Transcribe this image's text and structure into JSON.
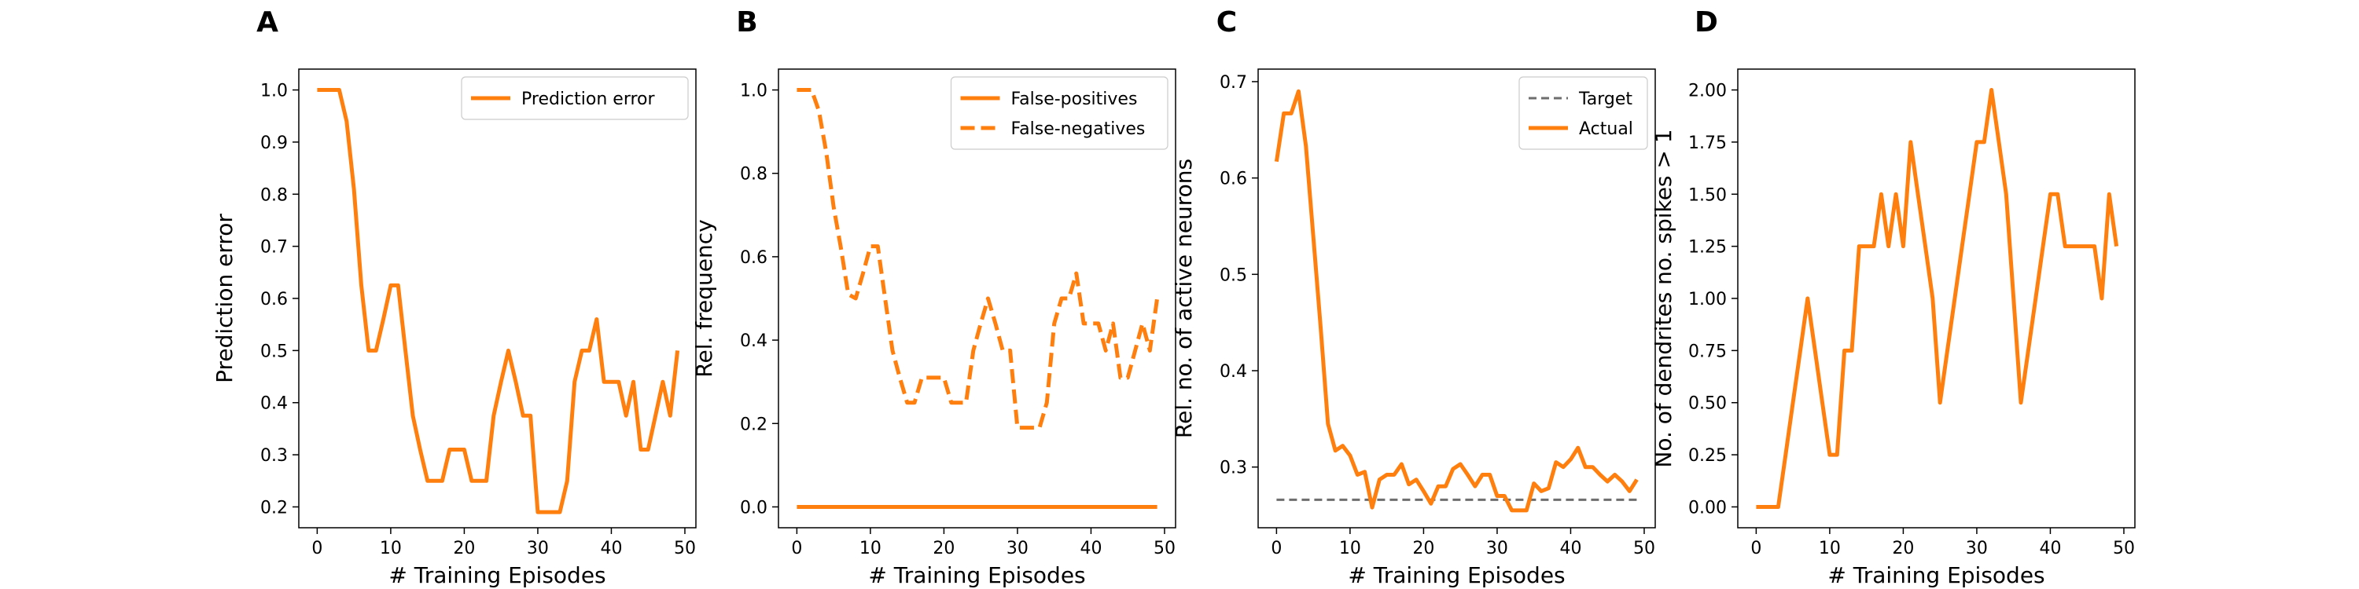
{
  "colors": {
    "orange": "#ff7f0e",
    "gray": "#6e6e6e",
    "frame": "#000000"
  },
  "chart_data": [
    {
      "panel_label": "A",
      "type": "line",
      "xlabel": "# Training Episodes",
      "ylabel": "Prediction error",
      "xlim": [
        -2.5,
        51.5
      ],
      "ylim": [
        0.16,
        1.04
      ],
      "xticks": [
        0,
        10,
        20,
        30,
        40,
        50
      ],
      "yticks": [
        0.2,
        0.3,
        0.4,
        0.5,
        0.6,
        0.7,
        0.8,
        0.9,
        1.0
      ],
      "ytick_labels": [
        "0.2",
        "0.3",
        "0.4",
        "0.5",
        "0.6",
        "0.7",
        "0.8",
        "0.9",
        "1.0"
      ],
      "grid": false,
      "legend_position": "top-right",
      "series": [
        {
          "name": "Prediction error",
          "style": "solid",
          "color": "#ff7f0e",
          "x": [
            0,
            1,
            2,
            3,
            4,
            5,
            6,
            7,
            8,
            9,
            10,
            11,
            12,
            13,
            14,
            15,
            16,
            17,
            18,
            19,
            20,
            21,
            22,
            23,
            24,
            25,
            26,
            27,
            28,
            29,
            30,
            31,
            32,
            33,
            34,
            35,
            36,
            37,
            38,
            39,
            40,
            41,
            42,
            43,
            44,
            45,
            46,
            47,
            48,
            49
          ],
          "values": [
            1.0,
            1.0,
            1.0,
            1.0,
            0.94,
            0.81,
            0.625,
            0.5,
            0.5,
            0.56,
            0.625,
            0.625,
            0.5,
            0.375,
            0.31,
            0.25,
            0.25,
            0.25,
            0.31,
            0.31,
            0.31,
            0.25,
            0.25,
            0.25,
            0.375,
            0.44,
            0.5,
            0.44,
            0.375,
            0.375,
            0.19,
            0.19,
            0.19,
            0.19,
            0.25,
            0.44,
            0.5,
            0.5,
            0.56,
            0.44,
            0.44,
            0.44,
            0.375,
            0.44,
            0.31,
            0.31,
            0.375,
            0.44,
            0.375,
            0.5
          ]
        }
      ]
    },
    {
      "panel_label": "B",
      "type": "line",
      "xlabel": "# Training Episodes",
      "ylabel": "Rel. frequency",
      "xlim": [
        -2.5,
        51.5
      ],
      "ylim": [
        -0.05,
        1.05
      ],
      "xticks": [
        0,
        10,
        20,
        30,
        40,
        50
      ],
      "yticks": [
        0.0,
        0.2,
        0.4,
        0.6,
        0.8,
        1.0
      ],
      "ytick_labels": [
        "0.0",
        "0.2",
        "0.4",
        "0.6",
        "0.8",
        "1.0"
      ],
      "grid": false,
      "legend_position": "top-right",
      "series": [
        {
          "name": "False-positives",
          "style": "solid",
          "color": "#ff7f0e",
          "x": [
            0,
            1,
            2,
            3,
            4,
            5,
            6,
            7,
            8,
            9,
            10,
            11,
            12,
            13,
            14,
            15,
            16,
            17,
            18,
            19,
            20,
            21,
            22,
            23,
            24,
            25,
            26,
            27,
            28,
            29,
            30,
            31,
            32,
            33,
            34,
            35,
            36,
            37,
            38,
            39,
            40,
            41,
            42,
            43,
            44,
            45,
            46,
            47,
            48,
            49
          ],
          "values": [
            0,
            0,
            0,
            0,
            0,
            0,
            0,
            0,
            0,
            0,
            0,
            0,
            0,
            0,
            0,
            0,
            0,
            0,
            0,
            0,
            0,
            0,
            0,
            0,
            0,
            0,
            0,
            0,
            0,
            0,
            0,
            0,
            0,
            0,
            0,
            0,
            0,
            0,
            0,
            0,
            0,
            0,
            0,
            0,
            0,
            0,
            0,
            0,
            0,
            0
          ]
        },
        {
          "name": "False-negatives",
          "style": "dashed",
          "color": "#ff7f0e",
          "x": [
            0,
            1,
            2,
            3,
            4,
            5,
            6,
            7,
            8,
            9,
            10,
            11,
            12,
            13,
            14,
            15,
            16,
            17,
            18,
            19,
            20,
            21,
            22,
            23,
            24,
            25,
            26,
            27,
            28,
            29,
            30,
            31,
            32,
            33,
            34,
            35,
            36,
            37,
            38,
            39,
            40,
            41,
            42,
            43,
            44,
            45,
            46,
            47,
            48,
            49
          ],
          "values": [
            1.0,
            1.0,
            1.0,
            0.95,
            0.85,
            0.72,
            0.62,
            0.51,
            0.5,
            0.56,
            0.625,
            0.625,
            0.5,
            0.375,
            0.31,
            0.25,
            0.25,
            0.31,
            0.31,
            0.31,
            0.31,
            0.25,
            0.25,
            0.25,
            0.375,
            0.44,
            0.5,
            0.44,
            0.375,
            0.375,
            0.19,
            0.19,
            0.19,
            0.19,
            0.25,
            0.44,
            0.5,
            0.5,
            0.56,
            0.44,
            0.44,
            0.44,
            0.375,
            0.44,
            0.31,
            0.31,
            0.375,
            0.44,
            0.375,
            0.5
          ]
        }
      ]
    },
    {
      "panel_label": "C",
      "type": "line",
      "xlabel": "# Training Episodes",
      "ylabel": "Rel. no. of active neurons",
      "xlim": [
        -2.5,
        51.5
      ],
      "ylim": [
        0.237,
        0.713
      ],
      "xticks": [
        0,
        10,
        20,
        30,
        40,
        50
      ],
      "yticks": [
        0.3,
        0.4,
        0.5,
        0.6,
        0.7
      ],
      "ytick_labels": [
        "0.3",
        "0.4",
        "0.5",
        "0.6",
        "0.7"
      ],
      "grid": false,
      "legend_position": "top-right",
      "series": [
        {
          "name": "Target",
          "style": "dashed",
          "color": "#6e6e6e",
          "x": [
            0,
            49
          ],
          "values": [
            0.266,
            0.266
          ]
        },
        {
          "name": "Actual",
          "style": "solid",
          "color": "#ff7f0e",
          "x": [
            0,
            1,
            2,
            3,
            4,
            5,
            6,
            7,
            8,
            9,
            10,
            11,
            12,
            13,
            14,
            15,
            16,
            17,
            18,
            19,
            20,
            21,
            22,
            23,
            24,
            25,
            26,
            27,
            28,
            29,
            30,
            31,
            32,
            33,
            34,
            35,
            36,
            37,
            38,
            39,
            40,
            41,
            42,
            43,
            44,
            45,
            46,
            47,
            48,
            49
          ],
          "values": [
            0.617,
            0.667,
            0.667,
            0.69,
            0.633,
            0.54,
            0.445,
            0.345,
            0.317,
            0.322,
            0.312,
            0.292,
            0.295,
            0.258,
            0.287,
            0.292,
            0.292,
            0.303,
            0.282,
            0.287,
            0.275,
            0.262,
            0.28,
            0.28,
            0.298,
            0.303,
            0.292,
            0.28,
            0.292,
            0.292,
            0.27,
            0.27,
            0.255,
            0.255,
            0.255,
            0.283,
            0.275,
            0.278,
            0.305,
            0.3,
            0.308,
            0.32,
            0.3,
            0.3,
            0.292,
            0.285,
            0.292,
            0.285,
            0.275,
            0.287
          ]
        }
      ]
    },
    {
      "panel_label": "D",
      "type": "line",
      "xlabel": "# Training Episodes",
      "ylabel": "No. of dendrites no. spikes > 1",
      "xlim": [
        -2.5,
        51.5
      ],
      "ylim": [
        -0.1,
        2.1
      ],
      "xticks": [
        0,
        10,
        20,
        30,
        40,
        50
      ],
      "yticks": [
        0.0,
        0.25,
        0.5,
        0.75,
        1.0,
        1.25,
        1.5,
        1.75,
        2.0
      ],
      "ytick_labels": [
        "0.00",
        "0.25",
        "0.50",
        "0.75",
        "1.00",
        "1.25",
        "1.50",
        "1.75",
        "2.00"
      ],
      "grid": false,
      "legend_position": "none",
      "series": [
        {
          "style": "solid",
          "color": "#ff7f0e",
          "x": [
            0,
            1,
            2,
            3,
            4,
            5,
            6,
            7,
            8,
            9,
            10,
            11,
            12,
            13,
            14,
            15,
            16,
            17,
            18,
            19,
            20,
            21,
            22,
            23,
            24,
            25,
            26,
            27,
            28,
            29,
            30,
            31,
            32,
            33,
            34,
            35,
            36,
            37,
            38,
            39,
            40,
            41,
            42,
            43,
            44,
            45,
            46,
            47,
            48,
            49
          ],
          "values": [
            0,
            0,
            0,
            0,
            0.25,
            0.5,
            0.75,
            1.0,
            0.75,
            0.5,
            0.25,
            0.25,
            0.75,
            0.75,
            1.25,
            1.25,
            1.25,
            1.5,
            1.25,
            1.5,
            1.25,
            1.75,
            1.5,
            1.25,
            1.0,
            0.5,
            0.75,
            1.0,
            1.25,
            1.5,
            1.75,
            1.75,
            2.0,
            1.75,
            1.5,
            1.0,
            0.5,
            0.75,
            1.0,
            1.25,
            1.5,
            1.5,
            1.25,
            1.25,
            1.25,
            1.25,
            1.25,
            1.0,
            1.5,
            1.25
          ]
        }
      ]
    }
  ]
}
